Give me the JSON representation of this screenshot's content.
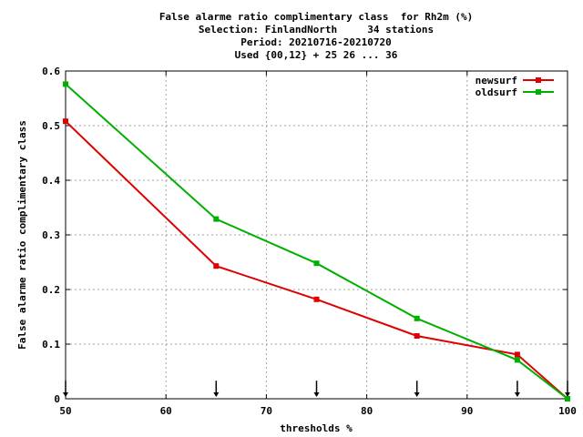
{
  "chart_data": {
    "type": "line",
    "title_lines": [
      "False alarme ratio complimentary class  for Rh2m (%)",
      "Selection: FinlandNorth     34 stations",
      "Period: 20210716-20210720",
      "Used {00,12} + 25 26 ... 36"
    ],
    "xlabel": "thresholds %",
    "ylabel": "False alarme ratio complimentary class",
    "xlim": [
      50,
      100
    ],
    "ylim": [
      0,
      0.6
    ],
    "xticks": [
      50,
      60,
      70,
      80,
      90,
      100
    ],
    "yticks": [
      0,
      0.1,
      0.2,
      0.3,
      0.4,
      0.5,
      0.6
    ],
    "xtick_labels": [
      "50",
      "60",
      "70",
      "80",
      "90",
      "100"
    ],
    "ytick_labels": [
      "0",
      "0.1",
      "0.2",
      "0.3",
      "0.4",
      "0.5",
      "0.6"
    ],
    "grid": true,
    "legend_position": "top-right",
    "threshold_markers": [
      50,
      65,
      75,
      85,
      95,
      100
    ],
    "series": [
      {
        "name": "newsurf",
        "color": "#e00000",
        "x": [
          50,
          65,
          75,
          85,
          95,
          100
        ],
        "values": [
          0.508,
          0.243,
          0.182,
          0.115,
          0.081,
          0.0
        ]
      },
      {
        "name": "oldsurf",
        "color": "#00b000",
        "x": [
          50,
          65,
          75,
          85,
          95,
          100
        ],
        "values": [
          0.576,
          0.329,
          0.248,
          0.147,
          0.071,
          0.0
        ]
      }
    ]
  }
}
